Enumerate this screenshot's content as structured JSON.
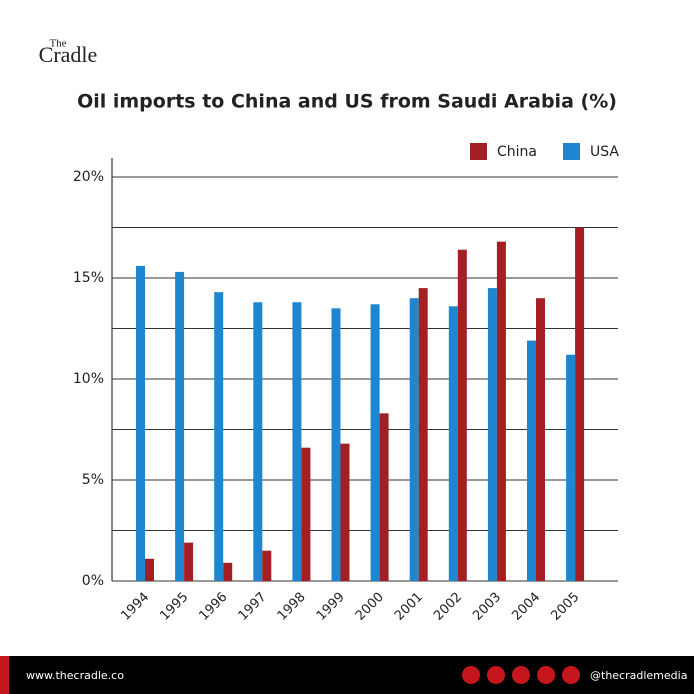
{
  "brand": {
    "small": "The",
    "main": "Cradle"
  },
  "footer": {
    "website": "www.thecradle.co",
    "handle": "@thecradlemedia"
  },
  "chart_data": {
    "type": "bar",
    "title": "Oil imports to China and US from Saudi Arabia (%)",
    "categories": [
      "1994",
      "1995",
      "1996",
      "1997",
      "1998",
      "1999",
      "2000",
      "2001",
      "2002",
      "2003",
      "2004",
      "2005"
    ],
    "series": [
      {
        "name": "China",
        "color": "#a31f24",
        "values": [
          1.1,
          1.9,
          0.9,
          1.5,
          6.6,
          6.8,
          8.3,
          14.5,
          16.4,
          16.8,
          14.0,
          17.5
        ]
      },
      {
        "name": "USA",
        "color": "#1e86d0",
        "values": [
          15.6,
          15.3,
          14.3,
          13.8,
          13.8,
          13.5,
          13.7,
          14.0,
          13.6,
          14.5,
          11.9,
          11.2
        ]
      }
    ],
    "ylim": [
      0,
      20
    ],
    "yticks": [
      {
        "value": 0,
        "label": "0%"
      },
      {
        "value": 5,
        "label": "5%"
      },
      {
        "value": 10,
        "label": "10%"
      },
      {
        "value": 15,
        "label": "15%"
      },
      {
        "value": 20,
        "label": "20%"
      }
    ],
    "yminor": [
      2.5,
      7.5,
      12.5,
      17.5
    ],
    "grid": true,
    "legend": "top-right"
  }
}
